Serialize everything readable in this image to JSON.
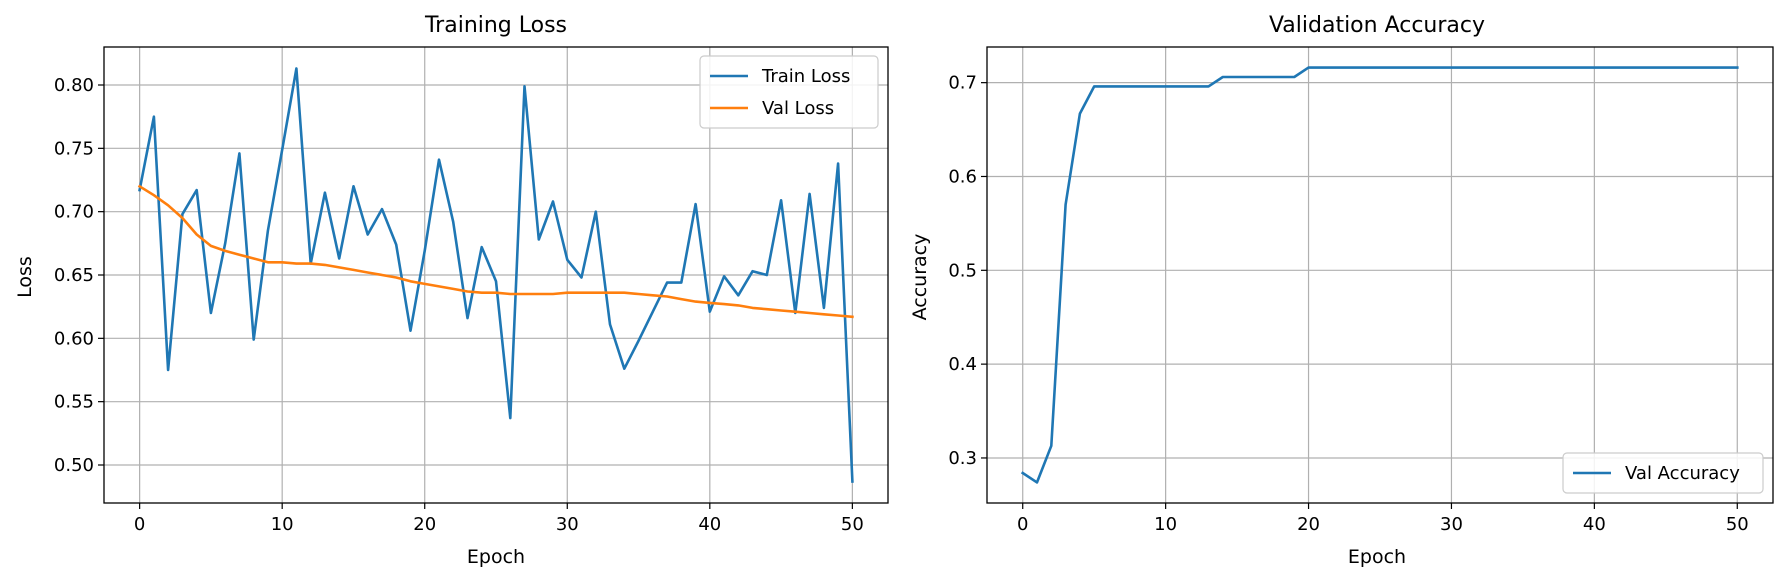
{
  "chart_data": [
    {
      "type": "line",
      "title": "Training Loss",
      "xlabel": "Epoch",
      "ylabel": "Loss",
      "xlim": [
        -2.5,
        52.5
      ],
      "ylim": [
        0.47,
        0.83
      ],
      "xticks": [
        "0",
        "10",
        "20",
        "30",
        "40",
        "50"
      ],
      "yticks": [
        "0.50",
        "0.55",
        "0.60",
        "0.65",
        "0.70",
        "0.75",
        "0.80"
      ],
      "grid": true,
      "legend": "top-right",
      "x": [
        0,
        1,
        2,
        3,
        4,
        5,
        6,
        7,
        8,
        9,
        10,
        11,
        12,
        13,
        14,
        15,
        16,
        17,
        18,
        19,
        20,
        21,
        22,
        23,
        24,
        25,
        26,
        27,
        28,
        29,
        30,
        31,
        32,
        33,
        34,
        35,
        36,
        37,
        38,
        39,
        40,
        41,
        42,
        43,
        44,
        45,
        46,
        47,
        48,
        49,
        50
      ],
      "series": [
        {
          "name": "Train Loss",
          "color": "#1f77b4",
          "values": [
            0.717,
            0.775,
            0.575,
            0.698,
            0.717,
            0.62,
            0.675,
            0.746,
            0.599,
            0.685,
            0.749,
            0.813,
            0.659,
            0.715,
            0.663,
            0.72,
            0.682,
            0.702,
            0.674,
            0.606,
            0.669,
            0.741,
            0.692,
            0.616,
            0.672,
            0.645,
            0.537,
            0.799,
            0.678,
            0.708,
            0.662,
            0.648,
            0.7,
            0.611,
            0.576,
            0.598,
            0.621,
            0.644,
            0.644,
            0.706,
            0.621,
            0.649,
            0.634,
            0.653,
            0.65,
            0.709,
            0.62,
            0.714,
            0.624,
            0.738,
            0.487
          ]
        },
        {
          "name": "Val Loss",
          "color": "#ff7f0e",
          "values": [
            0.72,
            0.713,
            0.705,
            0.695,
            0.682,
            0.673,
            0.669,
            0.666,
            0.663,
            0.66,
            0.66,
            0.659,
            0.659,
            0.658,
            0.656,
            0.654,
            0.652,
            0.65,
            0.648,
            0.645,
            0.643,
            0.641,
            0.639,
            0.637,
            0.636,
            0.636,
            0.635,
            0.635,
            0.635,
            0.635,
            0.636,
            0.636,
            0.636,
            0.636,
            0.636,
            0.635,
            0.634,
            0.633,
            0.631,
            0.629,
            0.628,
            0.627,
            0.626,
            0.624,
            0.623,
            0.622,
            0.621,
            0.62,
            0.619,
            0.618,
            0.617
          ]
        }
      ]
    },
    {
      "type": "line",
      "title": "Validation Accuracy",
      "xlabel": "Epoch",
      "ylabel": "Accuracy",
      "xlim": [
        -2.5,
        52.5
      ],
      "ylim": [
        0.252,
        0.738
      ],
      "xticks": [
        "0",
        "10",
        "20",
        "30",
        "40",
        "50"
      ],
      "yticks": [
        "0.3",
        "0.4",
        "0.5",
        "0.6",
        "0.7"
      ],
      "grid": true,
      "legend": "bottom-right",
      "x": [
        0,
        1,
        2,
        3,
        4,
        5,
        6,
        7,
        8,
        9,
        10,
        11,
        12,
        13,
        14,
        15,
        16,
        17,
        18,
        19,
        20,
        21,
        22,
        23,
        24,
        25,
        26,
        27,
        28,
        29,
        30,
        31,
        32,
        33,
        34,
        35,
        36,
        37,
        38,
        39,
        40,
        41,
        42,
        43,
        44,
        45,
        46,
        47,
        48,
        49,
        50
      ],
      "series": [
        {
          "name": "Val Accuracy",
          "color": "#1f77b4",
          "values": [
            0.284,
            0.274,
            0.313,
            0.57,
            0.667,
            0.696,
            0.696,
            0.696,
            0.696,
            0.696,
            0.696,
            0.696,
            0.696,
            0.696,
            0.706,
            0.706,
            0.706,
            0.706,
            0.706,
            0.706,
            0.716,
            0.716,
            0.716,
            0.716,
            0.716,
            0.716,
            0.716,
            0.716,
            0.716,
            0.716,
            0.716,
            0.716,
            0.716,
            0.716,
            0.716,
            0.716,
            0.716,
            0.716,
            0.716,
            0.716,
            0.716,
            0.716,
            0.716,
            0.716,
            0.716,
            0.716,
            0.716,
            0.716,
            0.716,
            0.716,
            0.716
          ]
        }
      ]
    }
  ]
}
